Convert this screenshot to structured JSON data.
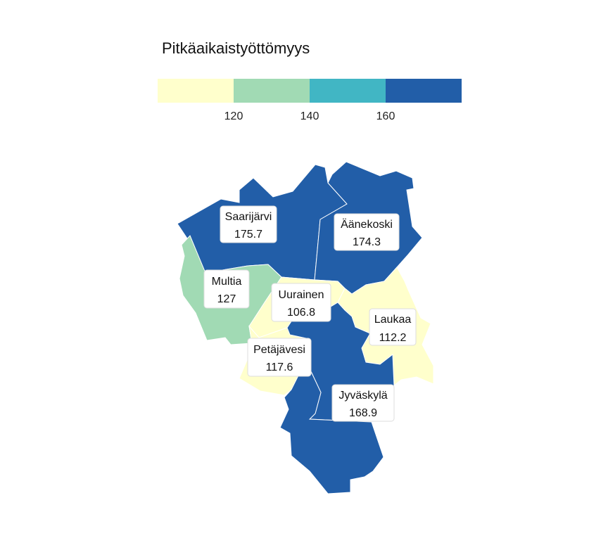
{
  "legend": {
    "title": "Pitkäaikaistyöttömyys",
    "breaks": [
      120,
      140,
      160
    ],
    "tick_labels": [
      "120",
      "140",
      "160"
    ],
    "colors": [
      "#ffffcc",
      "#a1dab4",
      "#41b6c4",
      "#225ea8"
    ]
  },
  "regions": [
    {
      "id": "saarijarvi",
      "name": "Saarijärvi",
      "value": 175.7,
      "value_label": "175.7"
    },
    {
      "id": "aanekoski",
      "name": "Äänekoski",
      "value": 174.3,
      "value_label": "174.3"
    },
    {
      "id": "multia",
      "name": "Multia",
      "value": 127,
      "value_label": "127"
    },
    {
      "id": "uurainen",
      "name": "Uurainen",
      "value": 106.8,
      "value_label": "106.8"
    },
    {
      "id": "laukaa",
      "name": "Laukaa",
      "value": 112.2,
      "value_label": "112.2"
    },
    {
      "id": "petajavesi",
      "name": "Petäjävesi",
      "value": 117.6,
      "value_label": "117.6"
    },
    {
      "id": "jyvaskyla",
      "name": "Jyväskylä",
      "value": 168.9,
      "value_label": "168.9"
    }
  ]
}
